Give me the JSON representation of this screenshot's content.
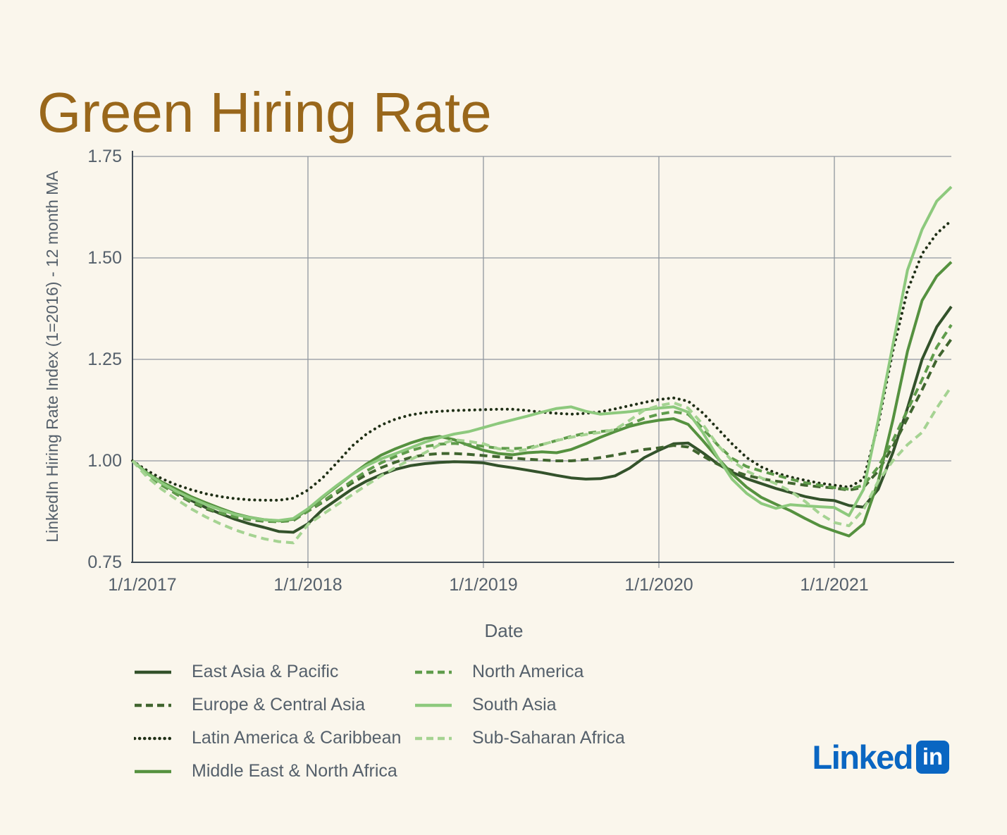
{
  "title": "Green Hiring Rate",
  "colors": {
    "background": "#FAF6EC",
    "title": "#99671B",
    "axis_text": "#55606B",
    "grid": "#90969E",
    "spine": "#3F4A55",
    "linkedin_blue": "#0A66C2"
  },
  "branding": {
    "wordmark": "Linked",
    "badge": "in"
  },
  "chart_data": {
    "type": "line",
    "title": "Green Hiring Rate",
    "xlabel": "Date",
    "ylabel": "LinkedIn Hiring Rate Index (1=2016) - 12 month MA",
    "ylim": [
      0.75,
      1.75
    ],
    "grid": true,
    "legend_position": "bottom",
    "x_start": "1/1/2017",
    "x_end": "9/1/2021",
    "x_interval": "monthly",
    "y_ticks": [
      {
        "label": "0.75",
        "value": 0.75
      },
      {
        "label": "1.00",
        "value": 1.0
      },
      {
        "label": "1.25",
        "value": 1.25
      },
      {
        "label": "1.50",
        "value": 1.5
      },
      {
        "label": "1.75",
        "value": 1.75
      }
    ],
    "x_ticks": [
      {
        "label": "1/1/2017",
        "month_index": 0
      },
      {
        "label": "1/1/2018",
        "month_index": 12
      },
      {
        "label": "1/1/2019",
        "month_index": 24
      },
      {
        "label": "1/1/2020",
        "month_index": 36
      },
      {
        "label": "1/1/2021",
        "month_index": 48
      }
    ],
    "series": [
      {
        "name": "East Asia & Pacific",
        "style": "solid",
        "color": "#33522B",
        "legend_column": 1,
        "values": [
          1.0,
          0.97,
          0.945,
          0.923,
          0.903,
          0.885,
          0.87,
          0.856,
          0.845,
          0.836,
          0.826,
          0.824,
          0.845,
          0.88,
          0.905,
          0.93,
          0.95,
          0.966,
          0.979,
          0.988,
          0.993,
          0.996,
          0.998,
          0.997,
          0.995,
          0.988,
          0.983,
          0.977,
          0.971,
          0.964,
          0.958,
          0.955,
          0.956,
          0.963,
          0.982,
          1.008,
          1.026,
          1.042,
          1.044,
          1.02,
          0.993,
          0.972,
          0.956,
          0.944,
          0.932,
          0.922,
          0.912,
          0.905,
          0.902,
          0.89,
          0.886,
          0.93,
          1.02,
          1.13,
          1.25,
          1.33,
          1.38
        ]
      },
      {
        "name": "Europe & Central Asia",
        "style": "dashed",
        "color": "#40652F",
        "legend_column": 1,
        "values": [
          1.0,
          0.965,
          0.94,
          0.918,
          0.898,
          0.882,
          0.87,
          0.861,
          0.855,
          0.851,
          0.85,
          0.853,
          0.876,
          0.898,
          0.921,
          0.945,
          0.966,
          0.983,
          0.997,
          1.008,
          1.015,
          1.018,
          1.018,
          1.016,
          1.013,
          1.01,
          1.007,
          1.004,
          1.002,
          1.0,
          1.0,
          1.003,
          1.008,
          1.014,
          1.021,
          1.028,
          1.032,
          1.038,
          1.034,
          1.012,
          0.992,
          0.976,
          0.964,
          0.956,
          0.95,
          0.945,
          0.94,
          0.936,
          0.933,
          0.928,
          0.935,
          0.975,
          1.035,
          1.105,
          1.175,
          1.25,
          1.3
        ]
      },
      {
        "name": "Latin America & Caribbean",
        "style": "dotted",
        "color": "#1F2F16",
        "legend_column": 1,
        "values": [
          1.0,
          0.976,
          0.956,
          0.941,
          0.929,
          0.919,
          0.912,
          0.907,
          0.904,
          0.903,
          0.903,
          0.908,
          0.928,
          0.958,
          0.996,
          1.036,
          1.066,
          1.088,
          1.103,
          1.113,
          1.119,
          1.122,
          1.124,
          1.125,
          1.126,
          1.127,
          1.127,
          1.124,
          1.12,
          1.117,
          1.115,
          1.117,
          1.121,
          1.128,
          1.136,
          1.144,
          1.151,
          1.155,
          1.147,
          1.118,
          1.08,
          1.042,
          1.008,
          0.985,
          0.97,
          0.96,
          0.952,
          0.945,
          0.94,
          0.935,
          0.955,
          1.09,
          1.27,
          1.42,
          1.51,
          1.56,
          1.592
        ]
      },
      {
        "name": "Middle East & North Africa",
        "style": "solid",
        "color": "#55913F",
        "legend_column": 1,
        "values": [
          1.0,
          0.97,
          0.948,
          0.93,
          0.912,
          0.897,
          0.883,
          0.87,
          0.861,
          0.855,
          0.852,
          0.856,
          0.88,
          0.91,
          0.938,
          0.966,
          0.992,
          1.014,
          1.03,
          1.044,
          1.055,
          1.06,
          1.052,
          1.038,
          1.026,
          1.018,
          1.015,
          1.02,
          1.022,
          1.02,
          1.028,
          1.042,
          1.058,
          1.072,
          1.085,
          1.094,
          1.1,
          1.104,
          1.09,
          1.05,
          1.008,
          0.968,
          0.935,
          0.91,
          0.893,
          0.877,
          0.858,
          0.84,
          0.827,
          0.815,
          0.845,
          0.95,
          1.1,
          1.27,
          1.395,
          1.455,
          1.49
        ]
      },
      {
        "name": "North America",
        "style": "dashed",
        "color": "#5F9C4B",
        "legend_column": 2,
        "values": [
          1.0,
          0.965,
          0.94,
          0.919,
          0.9,
          0.885,
          0.872,
          0.862,
          0.856,
          0.852,
          0.85,
          0.854,
          0.876,
          0.9,
          0.925,
          0.95,
          0.975,
          0.995,
          1.011,
          1.025,
          1.035,
          1.041,
          1.043,
          1.04,
          1.036,
          1.031,
          1.03,
          1.032,
          1.04,
          1.05,
          1.06,
          1.068,
          1.072,
          1.076,
          1.09,
          1.105,
          1.115,
          1.121,
          1.115,
          1.08,
          1.04,
          1.006,
          0.986,
          0.975,
          0.965,
          0.955,
          0.946,
          0.94,
          0.934,
          0.93,
          0.94,
          0.985,
          1.05,
          1.125,
          1.2,
          1.28,
          1.335
        ]
      },
      {
        "name": "South Asia",
        "style": "solid",
        "color": "#8DC97D",
        "legend_column": 2,
        "values": [
          1.0,
          0.968,
          0.945,
          0.925,
          0.908,
          0.893,
          0.88,
          0.868,
          0.86,
          0.855,
          0.853,
          0.858,
          0.882,
          0.912,
          0.94,
          0.966,
          0.988,
          1.005,
          1.018,
          1.032,
          1.046,
          1.057,
          1.066,
          1.072,
          1.082,
          1.092,
          1.101,
          1.11,
          1.12,
          1.129,
          1.133,
          1.122,
          1.115,
          1.118,
          1.121,
          1.126,
          1.13,
          1.133,
          1.12,
          1.07,
          1.01,
          0.955,
          0.92,
          0.895,
          0.883,
          0.892,
          0.889,
          0.887,
          0.885,
          0.865,
          0.93,
          1.1,
          1.285,
          1.47,
          1.57,
          1.64,
          1.675
        ]
      },
      {
        "name": "Sub-Saharan Africa",
        "style": "dashed",
        "color": "#A5D392",
        "legend_column": 2,
        "values": [
          1.0,
          0.96,
          0.93,
          0.905,
          0.882,
          0.862,
          0.845,
          0.83,
          0.818,
          0.808,
          0.801,
          0.798,
          0.843,
          0.868,
          0.892,
          0.916,
          0.94,
          0.963,
          0.984,
          1.003,
          1.02,
          1.04,
          1.052,
          1.048,
          1.042,
          1.03,
          1.024,
          1.028,
          1.04,
          1.05,
          1.058,
          1.065,
          1.07,
          1.077,
          1.1,
          1.125,
          1.136,
          1.143,
          1.13,
          1.09,
          1.04,
          1.0,
          0.975,
          0.958,
          0.944,
          0.925,
          0.9,
          0.87,
          0.848,
          0.84,
          0.88,
          0.95,
          1.0,
          1.04,
          1.07,
          1.13,
          1.183
        ]
      }
    ]
  }
}
